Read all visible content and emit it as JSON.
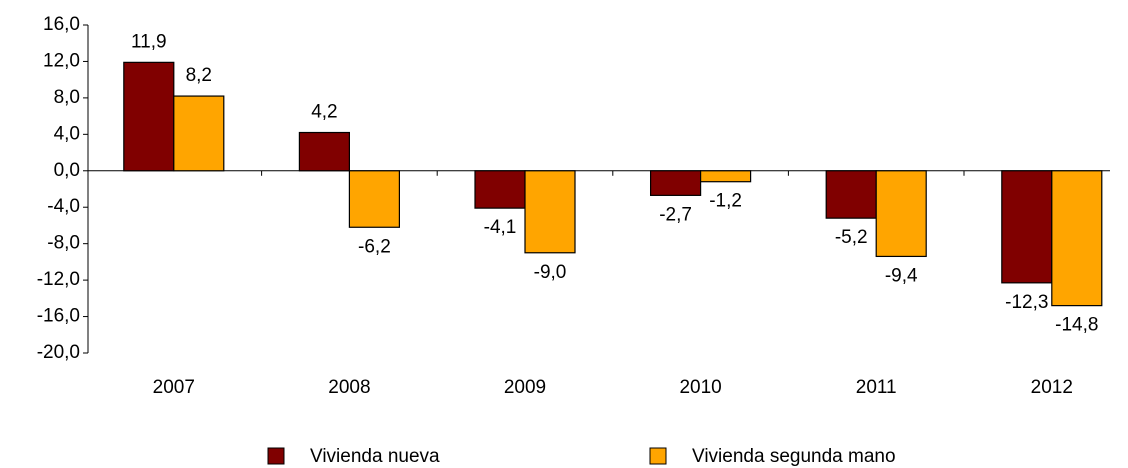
{
  "chart_data": {
    "type": "bar",
    "categories": [
      "2007",
      "2008",
      "2009",
      "2010",
      "2011",
      "2012"
    ],
    "series": [
      {
        "name": "Vivienda nueva",
        "color": "#800000",
        "values": [
          11.9,
          4.2,
          -4.1,
          -2.7,
          -5.2,
          -12.3
        ],
        "value_labels": [
          "11,9",
          "4,2",
          "-4,1",
          "-2,7",
          "-5,2",
          "-12,3"
        ]
      },
      {
        "name": "Vivienda segunda mano",
        "color": "#ffa500",
        "values": [
          8.2,
          -6.2,
          -9.0,
          -1.2,
          -9.4,
          -14.8
        ],
        "value_labels": [
          "8,2",
          "-6,2",
          "-9,0",
          "-1,2",
          "-9,4",
          "-14,8"
        ]
      }
    ],
    "ylim": [
      -20,
      16
    ],
    "yticks": [
      {
        "value": -20,
        "label": "-20,0"
      },
      {
        "value": -16,
        "label": "-16,0"
      },
      {
        "value": -12,
        "label": "-12,0"
      },
      {
        "value": -8,
        "label": "-8,0"
      },
      {
        "value": -4,
        "label": "-4,0"
      },
      {
        "value": 0,
        "label": "0,0"
      },
      {
        "value": 4,
        "label": "4,0"
      },
      {
        "value": 8,
        "label": "8,0"
      },
      {
        "value": 12,
        "label": "12,0"
      },
      {
        "value": 16,
        "label": "16,0"
      }
    ],
    "legend": "bottom",
    "grid": false
  }
}
